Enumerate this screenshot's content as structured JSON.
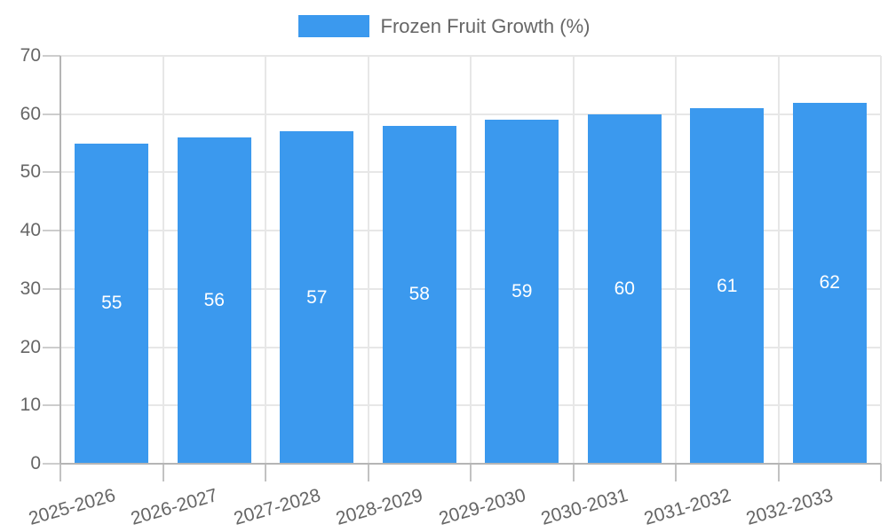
{
  "legend": {
    "items": [
      {
        "label": "Frozen Fruit Growth (%)",
        "color": "#3B99EE"
      }
    ]
  },
  "chart_data": {
    "type": "bar",
    "title": "",
    "xlabel": "",
    "ylabel": "",
    "categories": [
      "2025-2026",
      "2026-2027",
      "2027-2028",
      "2028-2029",
      "2029-2030",
      "2030-2031",
      "2031-2032",
      "2032-2033"
    ],
    "series": [
      {
        "name": "Frozen Fruit Growth (%)",
        "color": "#3B99EE",
        "values": [
          55,
          56,
          57,
          58,
          59,
          60,
          61,
          62
        ]
      }
    ],
    "ylim": [
      0,
      70
    ],
    "y_ticks": [
      0,
      10,
      20,
      30,
      40,
      50,
      60,
      70
    ],
    "grid": true,
    "legend_position": "top-center",
    "data_labels": {
      "show": true,
      "position": "center",
      "color": "#FFFFFF"
    },
    "x_tick_rotation_deg": -16
  },
  "colors": {
    "bar": "#3B99EE",
    "axis_text": "#666666",
    "value_label": "#FFFFFF",
    "background": "#FFFFFF"
  }
}
